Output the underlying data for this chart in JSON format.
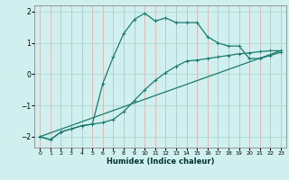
{
  "xlabel": "Humidex (Indice chaleur)",
  "bg_color": "#cff0ee",
  "grid_color": "#aad9d0",
  "line_color": "#1a7a6e",
  "xlim": [
    -0.5,
    23.5
  ],
  "ylim": [
    -2.35,
    2.2
  ],
  "yticks": [
    -2,
    -1,
    0,
    1,
    2
  ],
  "xticks": [
    0,
    1,
    2,
    3,
    4,
    5,
    6,
    7,
    8,
    9,
    10,
    11,
    12,
    13,
    14,
    15,
    16,
    17,
    18,
    19,
    20,
    21,
    22,
    23
  ],
  "series1_x": [
    0,
    1,
    2,
    3,
    4,
    5,
    6,
    7,
    8,
    9,
    10,
    11,
    12,
    13,
    14,
    15,
    16,
    17,
    18,
    19,
    20,
    21,
    22,
    23
  ],
  "series1_y": [
    -2.0,
    -2.1,
    -1.85,
    -1.75,
    -1.65,
    -1.6,
    -1.55,
    -1.45,
    -1.2,
    -0.85,
    -0.5,
    -0.2,
    0.05,
    0.25,
    0.42,
    0.45,
    0.5,
    0.55,
    0.6,
    0.65,
    0.68,
    0.72,
    0.75,
    0.75
  ],
  "series2_x": [
    0,
    1,
    2,
    3,
    4,
    5,
    6,
    7,
    8,
    9,
    10,
    11,
    12,
    13,
    14,
    15,
    16,
    17,
    18,
    19,
    20,
    21,
    22,
    23
  ],
  "series2_y": [
    -2.0,
    -2.1,
    -1.85,
    -1.75,
    -1.65,
    -1.6,
    -0.3,
    0.55,
    1.3,
    1.75,
    1.95,
    1.7,
    1.8,
    1.65,
    1.65,
    1.65,
    1.2,
    1.0,
    0.9,
    0.9,
    0.5,
    0.5,
    0.6,
    0.7
  ],
  "series3_x": [
    0,
    23
  ],
  "series3_y": [
    -2.0,
    0.75
  ]
}
